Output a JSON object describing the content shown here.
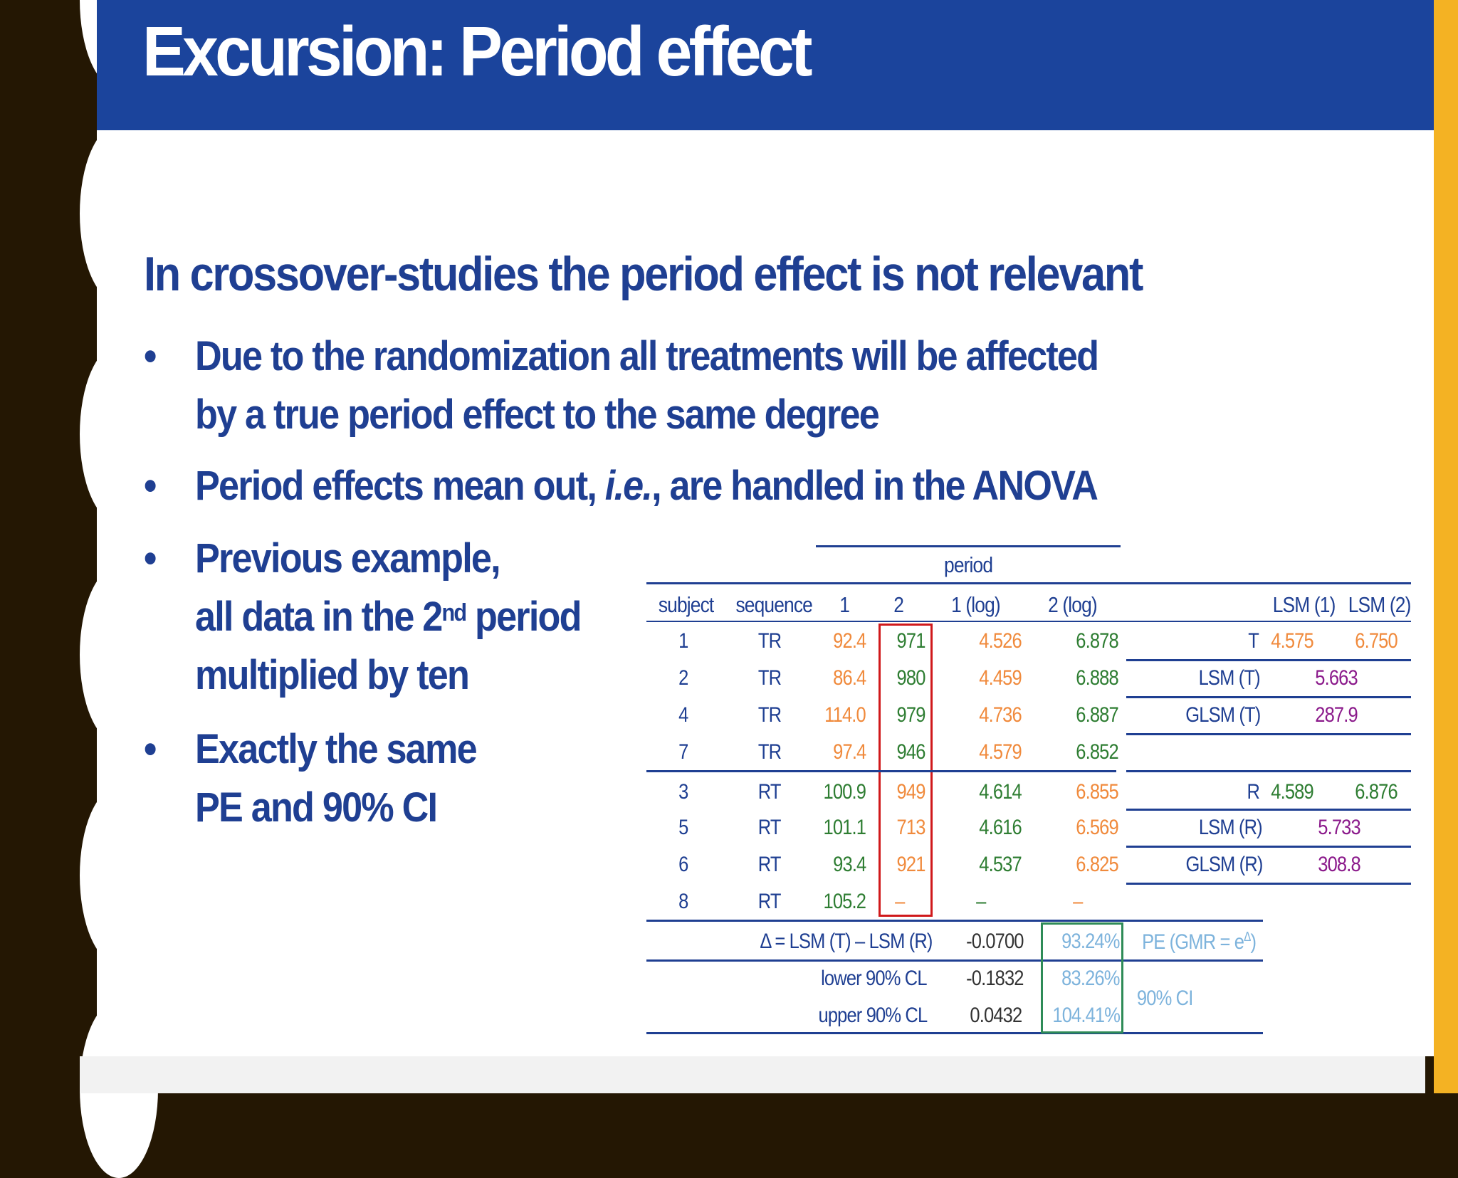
{
  "slide": {
    "title": "Excursion: Period effect",
    "heading": "In crossover-studies the period effect is not relevant",
    "bullets": [
      {
        "lines": [
          "Due to the randomization all treatments will be affected",
          "by a true period effect to the same degree"
        ]
      },
      {
        "pre": "Period effects mean out, ",
        "ital": "i.e.",
        "post": ", are handled in the ANOVA"
      },
      {
        "l1": "Previous example,",
        "l2a": "all data in the 2",
        "l2sup": "nd",
        "l2b": " period",
        "l3": "multiplied by ten"
      },
      {
        "lines": [
          "Exactly the same",
          "PE and 90% CI"
        ]
      }
    ],
    "bullet_char": "•"
  },
  "table": {
    "group_header": "period",
    "columns": [
      "subject",
      "sequence",
      "1",
      "2",
      "1 (log)",
      "2 (log)",
      "LSM (1)",
      "LSM (2)"
    ],
    "rows": [
      {
        "subject": "1",
        "sequence": "TR",
        "p1": "92.4",
        "p2": "971",
        "l1": "4.526",
        "l2": "6.878"
      },
      {
        "subject": "2",
        "sequence": "TR",
        "p1": "86.4",
        "p2": "980",
        "l1": "4.459",
        "l2": "6.888"
      },
      {
        "subject": "4",
        "sequence": "TR",
        "p1": "114.0",
        "p2": "979",
        "l1": "4.736",
        "l2": "6.887"
      },
      {
        "subject": "7",
        "sequence": "TR",
        "p1": "97.4",
        "p2": "946",
        "l1": "4.579",
        "l2": "6.852"
      },
      {
        "subject": "3",
        "sequence": "RT",
        "p1": "100.9",
        "p2": "949",
        "l1": "4.614",
        "l2": "6.855"
      },
      {
        "subject": "5",
        "sequence": "RT",
        "p1": "101.1",
        "p2": "713",
        "l1": "4.616",
        "l2": "6.569"
      },
      {
        "subject": "6",
        "sequence": "RT",
        "p1": "93.4",
        "p2": "921",
        "l1": "4.537",
        "l2": "6.825"
      },
      {
        "subject": "8",
        "sequence": "RT",
        "p1": "105.2",
        "p2": "–",
        "l1": "–",
        "l2": "–"
      }
    ],
    "lsm_T": {
      "label": "T",
      "v1": "4.575",
      "v2": "6.750",
      "lsm_label": "LSM (T)",
      "lsm": "5.663",
      "glsm_label": "GLSM (T)",
      "glsm": "287.9"
    },
    "lsm_R": {
      "label": "R",
      "v1": "4.589",
      "v2": "6.876",
      "lsm_label": "LSM (R)",
      "lsm": "5.733",
      "glsm_label": "GLSM (R)",
      "glsm": "308.8"
    },
    "delta": {
      "label": "Δ = LSM (T) – LSM (R)",
      "value": "-0.0700",
      "pct": "93.24%",
      "note": "PE (GMR = e",
      "note_sup": "Δ",
      "note_end": ")"
    },
    "lower": {
      "label": "lower 90% CL",
      "value": "-0.1832",
      "pct": "83.26%"
    },
    "upper": {
      "label": "upper 90% CL",
      "value": "0.0432",
      "pct": "104.41%"
    },
    "ci_label": "90% CI"
  },
  "colors": {
    "header_bar": "#1b449c",
    "text_navy": "#1f3f92",
    "orange": "#f08a3c",
    "green": "#2e7d32",
    "magenta": "#8b1a8b",
    "light_blue": "#7db3dc",
    "red_box": "#d0191b",
    "green_box": "#2e8b57",
    "accent_right": "#f4b223",
    "background_left": "#241703"
  }
}
